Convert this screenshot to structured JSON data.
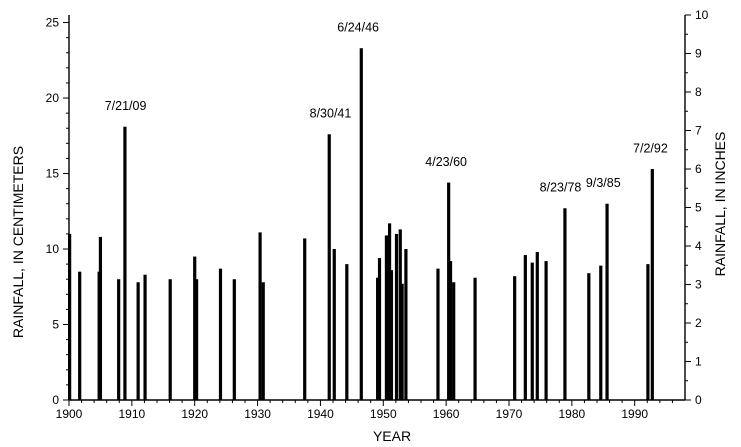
{
  "chart_data": {
    "type": "bar",
    "title": "",
    "xlabel": "YEAR",
    "ylabel_left": "RAINFALL, IN CENTIMETERS",
    "ylabel_right": "RAINFALL, IN INCHES",
    "xlim": [
      1900,
      1998
    ],
    "ylim_cm": [
      0,
      25.5
    ],
    "ylim_in": [
      0,
      10
    ],
    "x_ticks": [
      1900,
      1910,
      1920,
      1930,
      1940,
      1950,
      1960,
      1970,
      1980,
      1990
    ],
    "y_ticks_cm": [
      0,
      5,
      10,
      15,
      20,
      25
    ],
    "y_ticks_in": [
      0,
      1,
      2,
      3,
      4,
      5,
      6,
      7,
      8,
      9,
      10
    ],
    "grid": false,
    "series": [
      {
        "x": [
          1900.1,
          1901.7,
          1904.8,
          1905.0,
          1907.9,
          1908.9,
          1911.0,
          1912.1,
          1916.1,
          1920.0,
          1920.3,
          1924.1,
          1926.3,
          1930.4,
          1930.9,
          1937.5,
          1941.4,
          1942.2,
          1944.2,
          1946.5,
          1949.1,
          1949.4,
          1950.5,
          1951.0,
          1951.3,
          1952.1,
          1952.7,
          1953.0,
          1953.6,
          1958.7,
          1960.4,
          1960.7,
          1961.2,
          1964.6,
          1970.9,
          1972.6,
          1973.7,
          1974.5,
          1975.9,
          1978.9,
          1982.7,
          1984.6,
          1985.6,
          1992.1,
          1992.8
        ],
        "values": [
          11.0,
          8.5,
          8.5,
          10.8,
          8.0,
          18.1,
          7.8,
          8.3,
          8.0,
          9.5,
          8.0,
          8.7,
          8.0,
          11.1,
          7.8,
          10.7,
          17.6,
          10.0,
          9.0,
          23.3,
          8.1,
          9.4,
          10.9,
          11.7,
          8.6,
          11.0,
          11.3,
          7.7,
          10.0,
          8.7,
          14.4,
          9.2,
          7.8,
          8.1,
          8.2,
          9.6,
          9.1,
          9.8,
          9.2,
          12.7,
          8.4,
          8.9,
          13.0,
          9.0,
          15.3
        ]
      }
    ],
    "annotations": [
      {
        "text": "7/21/09",
        "x": 1909.0,
        "y": 19.2
      },
      {
        "text": "8/30/41",
        "x": 1941.6,
        "y": 18.7
      },
      {
        "text": "6/24/46",
        "x": 1946.0,
        "y": 24.4
      },
      {
        "text": "4/23/60",
        "x": 1960.0,
        "y": 15.5
      },
      {
        "text": "8/23/78",
        "x": 1978.2,
        "y": 13.8
      },
      {
        "text": "9/3/85",
        "x": 1985.0,
        "y": 14.1
      },
      {
        "text": "7/2/92",
        "x": 1992.5,
        "y": 16.4
      }
    ]
  }
}
